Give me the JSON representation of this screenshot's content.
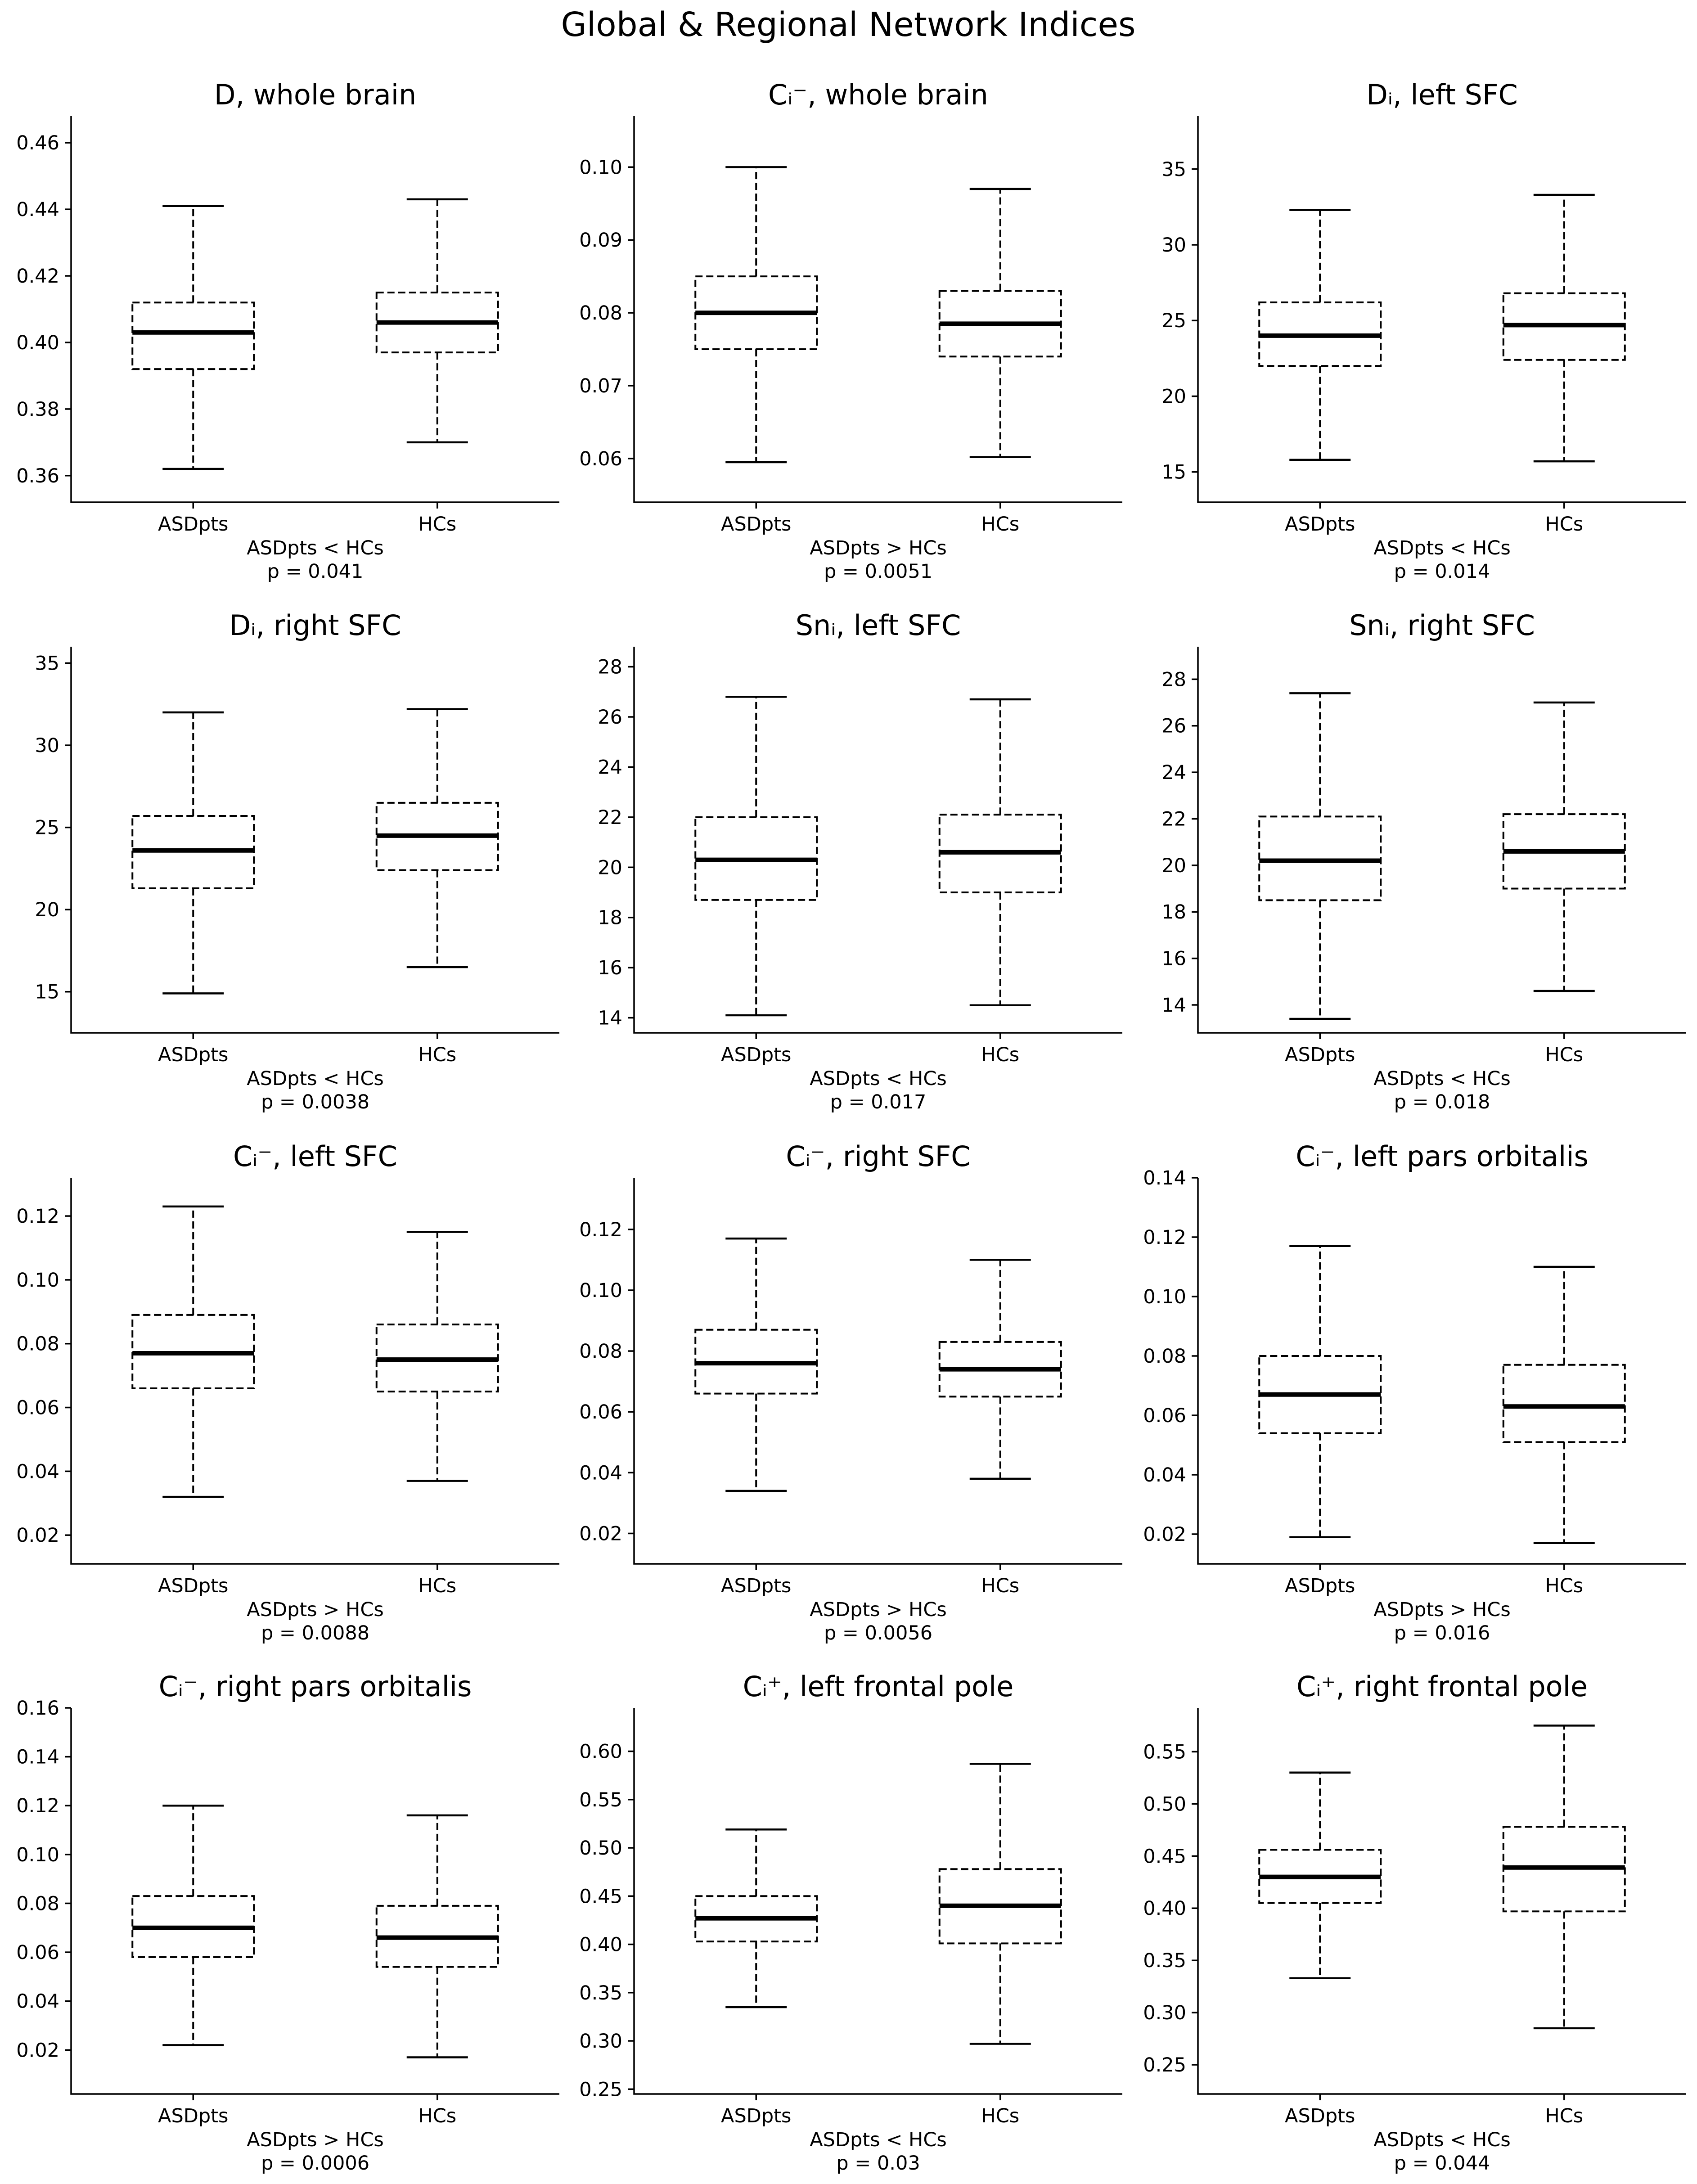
{
  "figure": {
    "title": "Global & Regional Network Indices"
  },
  "chart_data": [
    {
      "type": "box",
      "title": "D, whole brain",
      "categories": [
        "ASDpts",
        "HCs"
      ],
      "ylim": [
        0.352,
        0.468
      ],
      "yticks": [
        0.36,
        0.38,
        0.4,
        0.42,
        0.44,
        0.46
      ],
      "ytick_labels": [
        "0.36",
        "0.38",
        "0.40",
        "0.42",
        "0.44",
        "0.46"
      ],
      "boxes": [
        {
          "min": 0.362,
          "q1": 0.392,
          "median": 0.403,
          "q3": 0.412,
          "max": 0.441
        },
        {
          "min": 0.37,
          "q1": 0.397,
          "median": 0.406,
          "q3": 0.415,
          "max": 0.443
        }
      ],
      "comparison": "ASDpts < HCs",
      "p_label": "p = 0.041"
    },
    {
      "type": "box",
      "title": "Cᵢ⁻, whole brain",
      "categories": [
        "ASDpts",
        "HCs"
      ],
      "ylim": [
        0.054,
        0.107
      ],
      "yticks": [
        0.06,
        0.07,
        0.08,
        0.09,
        0.1
      ],
      "ytick_labels": [
        "0.06",
        "0.07",
        "0.08",
        "0.09",
        "0.10"
      ],
      "boxes": [
        {
          "min": 0.0595,
          "q1": 0.075,
          "median": 0.08,
          "q3": 0.085,
          "max": 0.1
        },
        {
          "min": 0.0602,
          "q1": 0.074,
          "median": 0.0785,
          "q3": 0.083,
          "max": 0.097
        }
      ],
      "comparison": "ASDpts > HCs",
      "p_label": "p = 0.0051"
    },
    {
      "type": "box",
      "title": "Dᵢ, left SFC",
      "categories": [
        "ASDpts",
        "HCs"
      ],
      "ylim": [
        13.0,
        38.5
      ],
      "yticks": [
        15,
        20,
        25,
        30,
        35
      ],
      "ytick_labels": [
        "15",
        "20",
        "25",
        "30",
        "35"
      ],
      "boxes": [
        {
          "min": 15.8,
          "q1": 22.0,
          "median": 24.0,
          "q3": 26.2,
          "max": 32.3
        },
        {
          "min": 15.7,
          "q1": 22.4,
          "median": 24.7,
          "q3": 26.8,
          "max": 33.3
        }
      ],
      "comparison": "ASDpts < HCs",
      "p_label": "p = 0.014"
    },
    {
      "type": "box",
      "title": "Dᵢ, right SFC",
      "categories": [
        "ASDpts",
        "HCs"
      ],
      "ylim": [
        12.5,
        36.0
      ],
      "yticks": [
        15,
        20,
        25,
        30,
        35
      ],
      "ytick_labels": [
        "15",
        "20",
        "25",
        "30",
        "35"
      ],
      "boxes": [
        {
          "min": 14.9,
          "q1": 21.3,
          "median": 23.6,
          "q3": 25.7,
          "max": 32.0
        },
        {
          "min": 16.5,
          "q1": 22.4,
          "median": 24.5,
          "q3": 26.5,
          "max": 32.2
        }
      ],
      "comparison": "ASDpts < HCs",
      "p_label": "p = 0.0038"
    },
    {
      "type": "box",
      "title": "Snᵢ, left SFC",
      "categories": [
        "ASDpts",
        "HCs"
      ],
      "ylim": [
        13.4,
        28.8
      ],
      "yticks": [
        14,
        16,
        18,
        20,
        22,
        24,
        26,
        28
      ],
      "ytick_labels": [
        "14",
        "16",
        "18",
        "20",
        "22",
        "24",
        "26",
        "28"
      ],
      "boxes": [
        {
          "min": 14.1,
          "q1": 18.7,
          "median": 20.3,
          "q3": 22.0,
          "max": 26.8
        },
        {
          "min": 14.5,
          "q1": 19.0,
          "median": 20.6,
          "q3": 22.1,
          "max": 26.7
        }
      ],
      "comparison": "ASDpts < HCs",
      "p_label": "p = 0.017"
    },
    {
      "type": "box",
      "title": "Snᵢ, right SFC",
      "categories": [
        "ASDpts",
        "HCs"
      ],
      "ylim": [
        12.8,
        29.4
      ],
      "yticks": [
        14,
        16,
        18,
        20,
        22,
        24,
        26,
        28
      ],
      "ytick_labels": [
        "14",
        "16",
        "18",
        "20",
        "22",
        "24",
        "26",
        "28"
      ],
      "boxes": [
        {
          "min": 13.4,
          "q1": 18.5,
          "median": 20.2,
          "q3": 22.1,
          "max": 27.4
        },
        {
          "min": 14.6,
          "q1": 19.0,
          "median": 20.6,
          "q3": 22.2,
          "max": 27.0
        }
      ],
      "comparison": "ASDpts < HCs",
      "p_label": "p = 0.018"
    },
    {
      "type": "box",
      "title": "Cᵢ⁻, left SFC",
      "categories": [
        "ASDpts",
        "HCs"
      ],
      "ylim": [
        0.011,
        0.132
      ],
      "yticks": [
        0.02,
        0.04,
        0.06,
        0.08,
        0.1,
        0.12
      ],
      "ytick_labels": [
        "0.02",
        "0.04",
        "0.06",
        "0.08",
        "0.10",
        "0.12"
      ],
      "boxes": [
        {
          "min": 0.032,
          "q1": 0.066,
          "median": 0.077,
          "q3": 0.089,
          "max": 0.123
        },
        {
          "min": 0.037,
          "q1": 0.065,
          "median": 0.075,
          "q3": 0.086,
          "max": 0.115
        }
      ],
      "comparison": "ASDpts > HCs",
      "p_label": "p = 0.0088"
    },
    {
      "type": "box",
      "title": "Cᵢ⁻, right SFC",
      "categories": [
        "ASDpts",
        "HCs"
      ],
      "ylim": [
        0.01,
        0.137
      ],
      "yticks": [
        0.02,
        0.04,
        0.06,
        0.08,
        0.1,
        0.12
      ],
      "ytick_labels": [
        "0.02",
        "0.04",
        "0.06",
        "0.08",
        "0.10",
        "0.12"
      ],
      "boxes": [
        {
          "min": 0.034,
          "q1": 0.066,
          "median": 0.076,
          "q3": 0.087,
          "max": 0.117
        },
        {
          "min": 0.038,
          "q1": 0.065,
          "median": 0.074,
          "q3": 0.083,
          "max": 0.11
        }
      ],
      "comparison": "ASDpts > HCs",
      "p_label": "p = 0.0056"
    },
    {
      "type": "box",
      "title": "Cᵢ⁻, left pars orbitalis",
      "categories": [
        "ASDpts",
        "HCs"
      ],
      "ylim": [
        0.01,
        0.14
      ],
      "yticks": [
        0.02,
        0.04,
        0.06,
        0.08,
        0.1,
        0.12,
        0.14
      ],
      "ytick_labels": [
        "0.02",
        "0.04",
        "0.06",
        "0.08",
        "0.10",
        "0.12",
        "0.14"
      ],
      "boxes": [
        {
          "min": 0.019,
          "q1": 0.054,
          "median": 0.067,
          "q3": 0.08,
          "max": 0.117
        },
        {
          "min": 0.017,
          "q1": 0.051,
          "median": 0.063,
          "q3": 0.077,
          "max": 0.11
        }
      ],
      "comparison": "ASDpts > HCs",
      "p_label": "p = 0.016"
    },
    {
      "type": "box",
      "title": "Cᵢ⁻, right pars orbitalis",
      "categories": [
        "ASDpts",
        "HCs"
      ],
      "ylim": [
        0.002,
        0.16
      ],
      "yticks": [
        0.02,
        0.04,
        0.06,
        0.08,
        0.1,
        0.12,
        0.14,
        0.16
      ],
      "ytick_labels": [
        "0.02",
        "0.04",
        "0.06",
        "0.08",
        "0.10",
        "0.12",
        "0.14",
        "0.16"
      ],
      "boxes": [
        {
          "min": 0.022,
          "q1": 0.058,
          "median": 0.07,
          "q3": 0.083,
          "max": 0.12
        },
        {
          "min": 0.017,
          "q1": 0.054,
          "median": 0.066,
          "q3": 0.079,
          "max": 0.116
        }
      ],
      "comparison": "ASDpts > HCs",
      "p_label": "p = 0.0006"
    },
    {
      "type": "box",
      "title": "Cᵢ⁺, left frontal pole",
      "categories": [
        "ASDpts",
        "HCs"
      ],
      "ylim": [
        0.245,
        0.645
      ],
      "yticks": [
        0.25,
        0.3,
        0.35,
        0.4,
        0.45,
        0.5,
        0.55,
        0.6
      ],
      "ytick_labels": [
        "0.25",
        "0.30",
        "0.35",
        "0.40",
        "0.45",
        "0.50",
        "0.55",
        "0.60"
      ],
      "boxes": [
        {
          "min": 0.335,
          "q1": 0.403,
          "median": 0.427,
          "q3": 0.45,
          "max": 0.519
        },
        {
          "min": 0.297,
          "q1": 0.401,
          "median": 0.44,
          "q3": 0.478,
          "max": 0.587
        }
      ],
      "comparison": "ASDpts < HCs",
      "p_label": "p = 0.03"
    },
    {
      "type": "box",
      "title": "Cᵢ⁺, right frontal pole",
      "categories": [
        "ASDpts",
        "HCs"
      ],
      "ylim": [
        0.222,
        0.592
      ],
      "yticks": [
        0.25,
        0.3,
        0.35,
        0.4,
        0.45,
        0.5,
        0.55
      ],
      "ytick_labels": [
        "0.25",
        "0.30",
        "0.35",
        "0.40",
        "0.45",
        "0.50",
        "0.55"
      ],
      "boxes": [
        {
          "min": 0.333,
          "q1": 0.405,
          "median": 0.43,
          "q3": 0.456,
          "max": 0.53
        },
        {
          "min": 0.285,
          "q1": 0.397,
          "median": 0.439,
          "q3": 0.478,
          "max": 0.575
        }
      ],
      "comparison": "ASDpts < HCs",
      "p_label": "p = 0.044"
    }
  ]
}
